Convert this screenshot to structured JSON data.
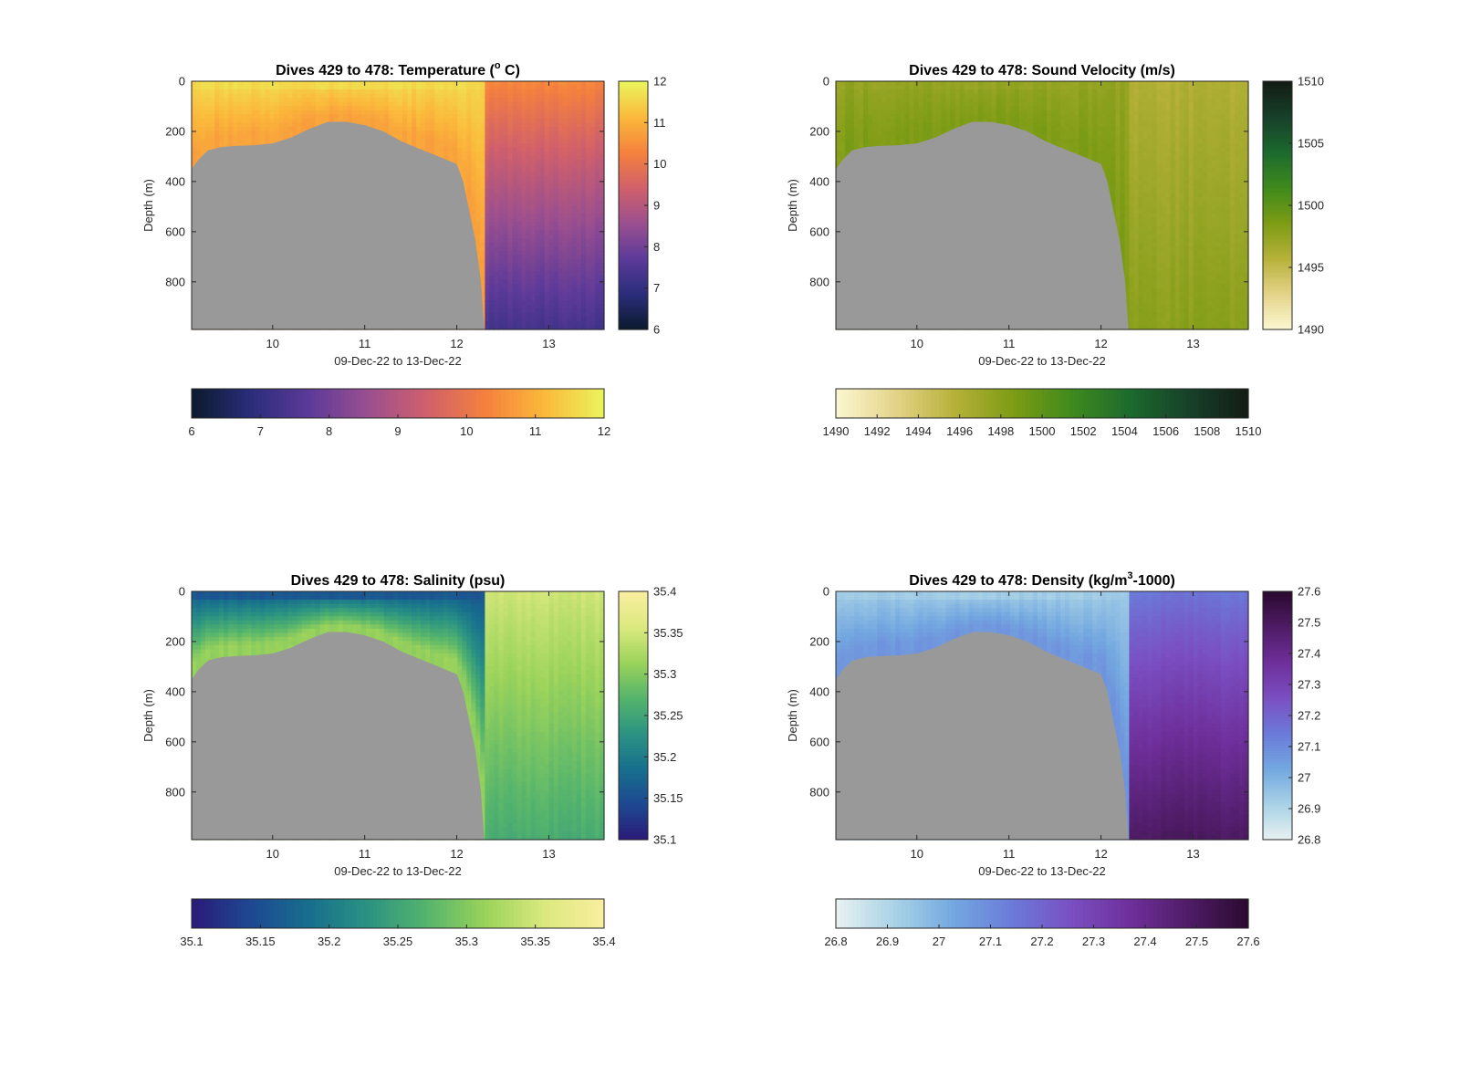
{
  "chart_data": [
    {
      "type": "heatmap",
      "title": "Dives 429 to 478: Temperature (° C)",
      "title_parts": {
        "prefix": "Dives 429 to 478: Temperature (",
        "sup": "o",
        "suffix": " C)"
      },
      "xlabel": "09-Dec-22 to 13-Dec-22",
      "ylabel": "Depth (m)",
      "xlim": [
        9.12,
        13.6
      ],
      "ylim": [
        0,
        990
      ],
      "y_reversed": true,
      "xticks": [
        10,
        11,
        12,
        13
      ],
      "yticks": [
        0,
        200,
        400,
        600,
        800
      ],
      "colorbar": {
        "min": 6,
        "max": 12,
        "ticks": [
          6,
          7,
          8,
          9,
          10,
          11,
          12
        ],
        "ticks_horizontal": [
          6,
          7,
          8,
          9,
          10,
          11,
          12
        ],
        "colors": [
          "#0b1a2c",
          "#2a2d7a",
          "#5c3a99",
          "#9a4f8f",
          "#d0606b",
          "#f5813d",
          "#fbb93b",
          "#eaf55c"
        ]
      },
      "surface_value": 11.6,
      "upper_value": 10.8,
      "deep_top_value": 10.4,
      "deep_bottom_value": 7.3,
      "nodata_color": "#999999"
    },
    {
      "type": "heatmap",
      "title": "Dives 429 to 478: Sound Velocity (m/s)",
      "xlabel": "09-Dec-22 to 13-Dec-22",
      "ylabel": "Depth (m)",
      "xlim": [
        9.12,
        13.6
      ],
      "ylim": [
        0,
        990
      ],
      "y_reversed": true,
      "xticks": [
        10,
        11,
        12,
        13
      ],
      "yticks": [
        0,
        200,
        400,
        600,
        800
      ],
      "colorbar": {
        "min": 1490,
        "max": 1510,
        "ticks": [
          1490,
          1495,
          1500,
          1505,
          1510
        ],
        "ticks_horizontal": [
          1490,
          1492,
          1494,
          1496,
          1498,
          1500,
          1502,
          1504,
          1506,
          1508,
          1510
        ],
        "colors": [
          "#fcf7d2",
          "#e4d48a",
          "#b7b13a",
          "#7e9c15",
          "#3f8a1c",
          "#1c6a2e",
          "#17402a",
          "#131c14"
        ]
      },
      "surface_value": 1497.5,
      "upper_value": 1498.5,
      "deep_top_value": 1496,
      "deep_bottom_value": 1498,
      "nodata_color": "#999999"
    },
    {
      "type": "heatmap",
      "title": "Dives 429 to 478: Salinity (psu)",
      "xlabel": "09-Dec-22 to 13-Dec-22",
      "ylabel": "Depth (m)",
      "xlim": [
        9.12,
        13.6
      ],
      "ylim": [
        0,
        990
      ],
      "y_reversed": true,
      "xticks": [
        10,
        11,
        12,
        13
      ],
      "yticks": [
        0,
        200,
        400,
        600,
        800
      ],
      "colorbar": {
        "min": 35.1,
        "max": 35.4,
        "ticks": [
          35.1,
          35.15,
          35.2,
          35.25,
          35.3,
          35.35,
          35.4
        ],
        "ticks_horizontal": [
          35.1,
          35.15,
          35.2,
          35.25,
          35.3,
          35.35,
          35.4
        ],
        "colors": [
          "#2a1a77",
          "#1e4892",
          "#176f8d",
          "#2b9382",
          "#55b46c",
          "#9bd35b",
          "#dbe97e",
          "#faeea0"
        ]
      },
      "surface_value": 35.16,
      "upper_value": 35.31,
      "deep_top_value": 35.35,
      "deep_bottom_value": 35.26,
      "nodata_color": "#999999"
    },
    {
      "type": "heatmap",
      "title": "Dives 429 to 478: Density (kg/m³-1000)",
      "title_parts": {
        "prefix": "Dives 429 to 478: Density (kg/m",
        "sup": "3",
        "suffix": "-1000)"
      },
      "xlabel": "09-Dec-22 to 13-Dec-22",
      "ylabel": "Depth (m)",
      "xlim": [
        9.12,
        13.6
      ],
      "ylim": [
        0,
        990
      ],
      "y_reversed": true,
      "xticks": [
        10,
        11,
        12,
        13
      ],
      "yticks": [
        0,
        200,
        400,
        600,
        800
      ],
      "colorbar": {
        "min": 26.8,
        "max": 27.6,
        "ticks": [
          26.8,
          26.9,
          27,
          27.1,
          27.2,
          27.3,
          27.4,
          27.5,
          27.6
        ],
        "ticks_horizontal": [
          26.8,
          26.9,
          27,
          27.1,
          27.2,
          27.3,
          27.4,
          27.5,
          27.6
        ],
        "colors": [
          "#e9f2f2",
          "#a9d2e6",
          "#73a8e0",
          "#6b7ad9",
          "#7a4fc2",
          "#6e2f9a",
          "#4f1c66",
          "#2a0a2e"
        ]
      },
      "surface_value": 26.93,
      "upper_value": 27.07,
      "deep_top_value": 27.15,
      "deep_bottom_value": 27.5,
      "nodata_color": "#999999"
    }
  ],
  "seafloor_profile": {
    "x": [
      9.12,
      9.2,
      9.3,
      9.45,
      9.6,
      9.8,
      10.0,
      10.2,
      10.4,
      10.6,
      10.8,
      11.0,
      11.2,
      11.4,
      11.6,
      11.8,
      12.0,
      12.07,
      12.12,
      12.2,
      12.26,
      12.3,
      12.35,
      13.6
    ],
    "depth": [
      350,
      310,
      275,
      262,
      258,
      255,
      248,
      225,
      190,
      162,
      162,
      175,
      200,
      240,
      270,
      300,
      330,
      400,
      490,
      630,
      790,
      990,
      990,
      990
    ],
    "color": "#999999"
  }
}
